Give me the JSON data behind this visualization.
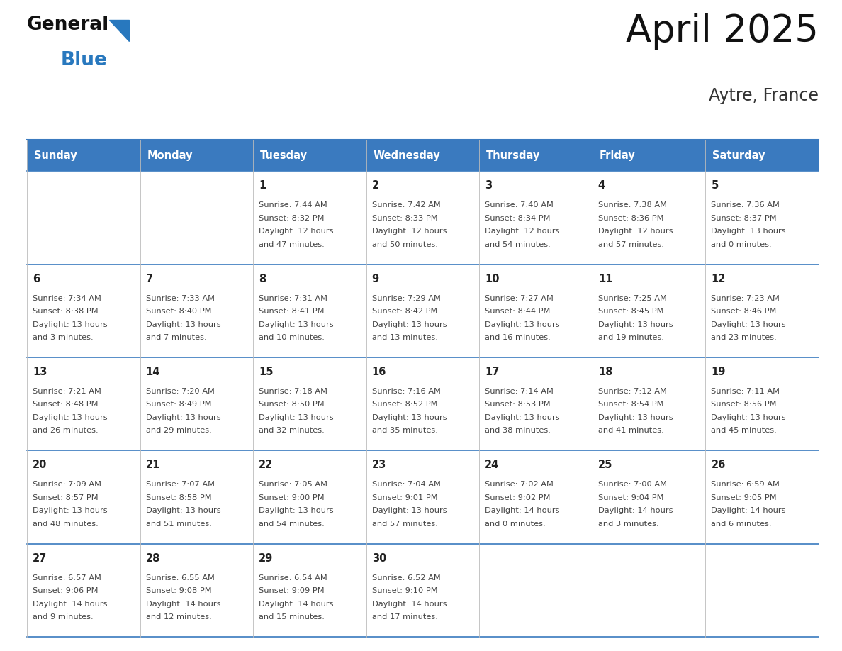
{
  "title": "April 2025",
  "subtitle": "Aytre, France",
  "header_bg": "#3a7abf",
  "header_text_color": "#ffffff",
  "day_names": [
    "Sunday",
    "Monday",
    "Tuesday",
    "Wednesday",
    "Thursday",
    "Friday",
    "Saturday"
  ],
  "cell_bg_white": "#ffffff",
  "cell_border_color": "#3a7abf",
  "row_divider_color": "#3a7abf",
  "day_num_color": "#222222",
  "cell_text_color": "#444444",
  "days": [
    {
      "day": 1,
      "col": 2,
      "row": 0,
      "sunrise": "7:44 AM",
      "sunset": "8:32 PM",
      "daylight": "12 hours and 47 minutes."
    },
    {
      "day": 2,
      "col": 3,
      "row": 0,
      "sunrise": "7:42 AM",
      "sunset": "8:33 PM",
      "daylight": "12 hours and 50 minutes."
    },
    {
      "day": 3,
      "col": 4,
      "row": 0,
      "sunrise": "7:40 AM",
      "sunset": "8:34 PM",
      "daylight": "12 hours and 54 minutes."
    },
    {
      "day": 4,
      "col": 5,
      "row": 0,
      "sunrise": "7:38 AM",
      "sunset": "8:36 PM",
      "daylight": "12 hours and 57 minutes."
    },
    {
      "day": 5,
      "col": 6,
      "row": 0,
      "sunrise": "7:36 AM",
      "sunset": "8:37 PM",
      "daylight": "13 hours and 0 minutes."
    },
    {
      "day": 6,
      "col": 0,
      "row": 1,
      "sunrise": "7:34 AM",
      "sunset": "8:38 PM",
      "daylight": "13 hours and 3 minutes."
    },
    {
      "day": 7,
      "col": 1,
      "row": 1,
      "sunrise": "7:33 AM",
      "sunset": "8:40 PM",
      "daylight": "13 hours and 7 minutes."
    },
    {
      "day": 8,
      "col": 2,
      "row": 1,
      "sunrise": "7:31 AM",
      "sunset": "8:41 PM",
      "daylight": "13 hours and 10 minutes."
    },
    {
      "day": 9,
      "col": 3,
      "row": 1,
      "sunrise": "7:29 AM",
      "sunset": "8:42 PM",
      "daylight": "13 hours and 13 minutes."
    },
    {
      "day": 10,
      "col": 4,
      "row": 1,
      "sunrise": "7:27 AM",
      "sunset": "8:44 PM",
      "daylight": "13 hours and 16 minutes."
    },
    {
      "day": 11,
      "col": 5,
      "row": 1,
      "sunrise": "7:25 AM",
      "sunset": "8:45 PM",
      "daylight": "13 hours and 19 minutes."
    },
    {
      "day": 12,
      "col": 6,
      "row": 1,
      "sunrise": "7:23 AM",
      "sunset": "8:46 PM",
      "daylight": "13 hours and 23 minutes."
    },
    {
      "day": 13,
      "col": 0,
      "row": 2,
      "sunrise": "7:21 AM",
      "sunset": "8:48 PM",
      "daylight": "13 hours and 26 minutes."
    },
    {
      "day": 14,
      "col": 1,
      "row": 2,
      "sunrise": "7:20 AM",
      "sunset": "8:49 PM",
      "daylight": "13 hours and 29 minutes."
    },
    {
      "day": 15,
      "col": 2,
      "row": 2,
      "sunrise": "7:18 AM",
      "sunset": "8:50 PM",
      "daylight": "13 hours and 32 minutes."
    },
    {
      "day": 16,
      "col": 3,
      "row": 2,
      "sunrise": "7:16 AM",
      "sunset": "8:52 PM",
      "daylight": "13 hours and 35 minutes."
    },
    {
      "day": 17,
      "col": 4,
      "row": 2,
      "sunrise": "7:14 AM",
      "sunset": "8:53 PM",
      "daylight": "13 hours and 38 minutes."
    },
    {
      "day": 18,
      "col": 5,
      "row": 2,
      "sunrise": "7:12 AM",
      "sunset": "8:54 PM",
      "daylight": "13 hours and 41 minutes."
    },
    {
      "day": 19,
      "col": 6,
      "row": 2,
      "sunrise": "7:11 AM",
      "sunset": "8:56 PM",
      "daylight": "13 hours and 45 minutes."
    },
    {
      "day": 20,
      "col": 0,
      "row": 3,
      "sunrise": "7:09 AM",
      "sunset": "8:57 PM",
      "daylight": "13 hours and 48 minutes."
    },
    {
      "day": 21,
      "col": 1,
      "row": 3,
      "sunrise": "7:07 AM",
      "sunset": "8:58 PM",
      "daylight": "13 hours and 51 minutes."
    },
    {
      "day": 22,
      "col": 2,
      "row": 3,
      "sunrise": "7:05 AM",
      "sunset": "9:00 PM",
      "daylight": "13 hours and 54 minutes."
    },
    {
      "day": 23,
      "col": 3,
      "row": 3,
      "sunrise": "7:04 AM",
      "sunset": "9:01 PM",
      "daylight": "13 hours and 57 minutes."
    },
    {
      "day": 24,
      "col": 4,
      "row": 3,
      "sunrise": "7:02 AM",
      "sunset": "9:02 PM",
      "daylight": "14 hours and 0 minutes."
    },
    {
      "day": 25,
      "col": 5,
      "row": 3,
      "sunrise": "7:00 AM",
      "sunset": "9:04 PM",
      "daylight": "14 hours and 3 minutes."
    },
    {
      "day": 26,
      "col": 6,
      "row": 3,
      "sunrise": "6:59 AM",
      "sunset": "9:05 PM",
      "daylight": "14 hours and 6 minutes."
    },
    {
      "day": 27,
      "col": 0,
      "row": 4,
      "sunrise": "6:57 AM",
      "sunset": "9:06 PM",
      "daylight": "14 hours and 9 minutes."
    },
    {
      "day": 28,
      "col": 1,
      "row": 4,
      "sunrise": "6:55 AM",
      "sunset": "9:08 PM",
      "daylight": "14 hours and 12 minutes."
    },
    {
      "day": 29,
      "col": 2,
      "row": 4,
      "sunrise": "6:54 AM",
      "sunset": "9:09 PM",
      "daylight": "14 hours and 15 minutes."
    },
    {
      "day": 30,
      "col": 3,
      "row": 4,
      "sunrise": "6:52 AM",
      "sunset": "9:10 PM",
      "daylight": "14 hours and 17 minutes."
    }
  ],
  "logo_general_color": "#111111",
  "logo_blue_color": "#2878be",
  "logo_triangle_color": "#2878be"
}
